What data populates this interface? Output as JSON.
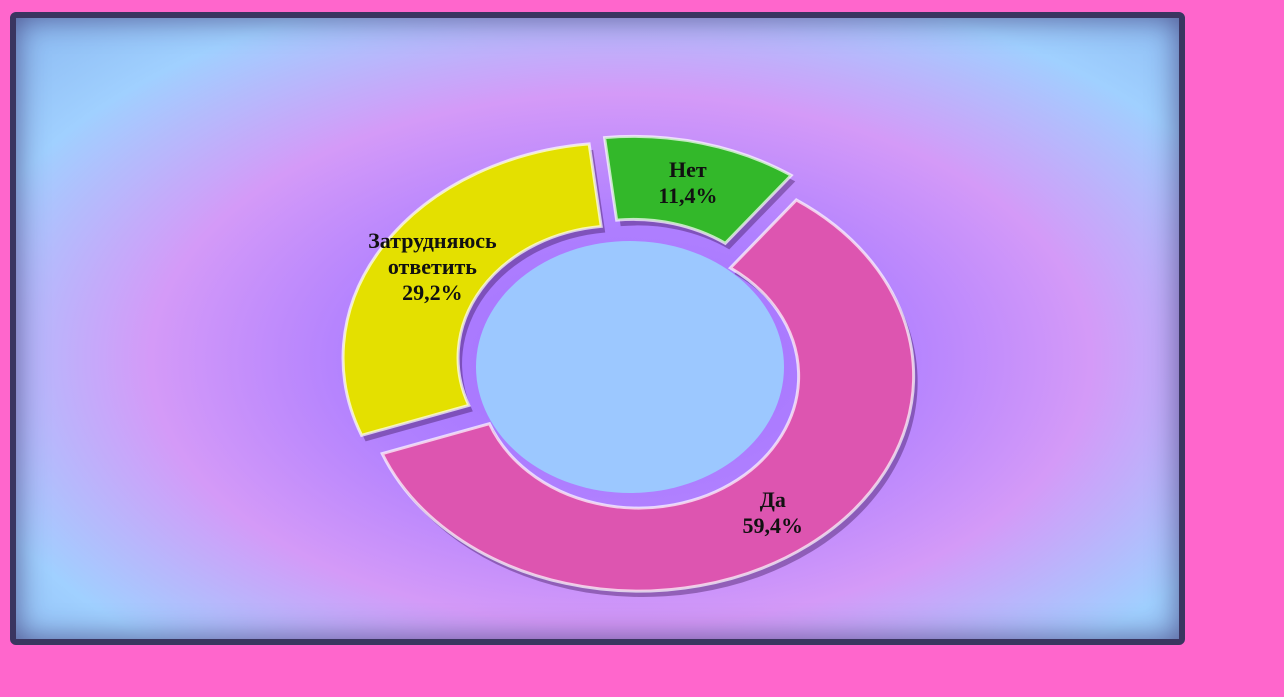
{
  "chart_data": {
    "type": "donut",
    "categories": [
      "Да",
      "Затрудняюсь ответить",
      "Нет"
    ],
    "values": [
      59.4,
      29.2,
      11.4
    ],
    "value_labels": [
      "59,4%",
      "29,2%",
      "11,4%"
    ],
    "colors": [
      "#dd55b0",
      "#e4e000",
      "#33b82a"
    ]
  }
}
